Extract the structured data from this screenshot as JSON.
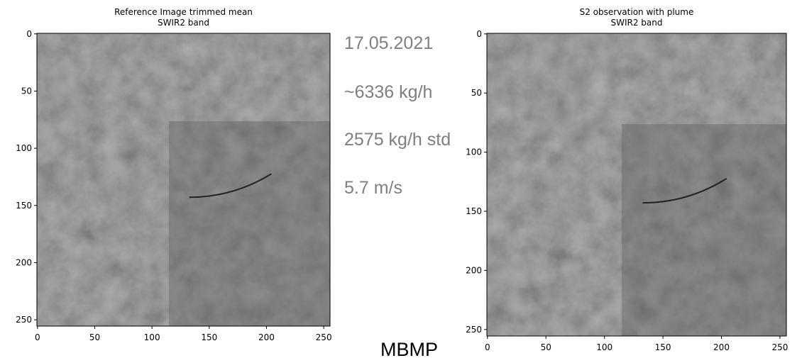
{
  "chart_data": [
    {
      "type": "image",
      "title": "Reference Image trimmed mean",
      "subtitle": "SWIR2 band",
      "xlim": [
        -0.5,
        255.5
      ],
      "ylim": [
        255.5,
        -0.5
      ],
      "xticks": [
        0,
        50,
        100,
        150,
        200,
        250
      ],
      "yticks": [
        0,
        50,
        100,
        150,
        200,
        250
      ]
    },
    {
      "type": "image",
      "title": "S2 observation with plume",
      "subtitle": "SWIR2 band",
      "xlim": [
        -0.5,
        255.5
      ],
      "ylim": [
        255.5,
        -0.5
      ],
      "xticks": [
        0,
        50,
        100,
        150,
        200,
        250
      ],
      "yticks": [
        0,
        50,
        100,
        150,
        200,
        250
      ]
    }
  ],
  "annotations": [
    "17.05.2021",
    "~6336 kg/h",
    "2575 kg/h std",
    "5.7 m/s"
  ],
  "footer": "MBMP"
}
